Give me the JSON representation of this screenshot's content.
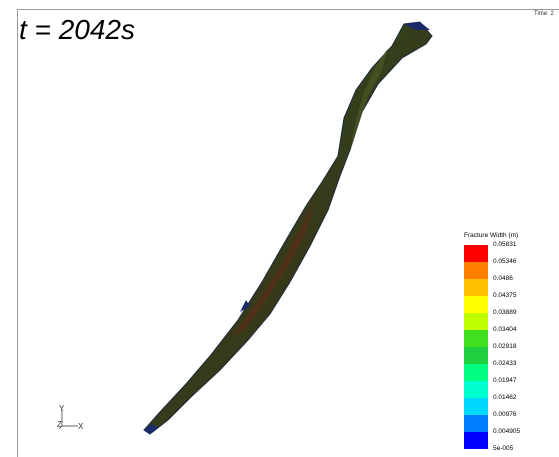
{
  "scene": {
    "time_label": "t = 2042s",
    "time_corner": "Time: 2"
  },
  "legend": {
    "title": "Fracture Width (m)",
    "ticks": [
      "0.05831",
      "0.05346",
      "0.0486",
      "0.04375",
      "0.03889",
      "0.03404",
      "0.02918",
      "0.02433",
      "0.01947",
      "0.01462",
      "0.00976",
      "0.004905",
      "5e-005"
    ],
    "colors": [
      "#ff0000",
      "#ff7f00",
      "#ffbf00",
      "#ffff00",
      "#bfff00",
      "#40e020",
      "#20d040",
      "#00ff80",
      "#00ffd0",
      "#00d8ff",
      "#007fff",
      "#0000ff"
    ]
  },
  "axes": {
    "y": "Y",
    "z": "Z",
    "x": "X"
  },
  "colors": {
    "fracture_dark": "#1c2a12",
    "fracture_mid": "#3a4a1c",
    "fracture_core": "#5a2a14",
    "fracture_edge": "#1a2a5a"
  }
}
